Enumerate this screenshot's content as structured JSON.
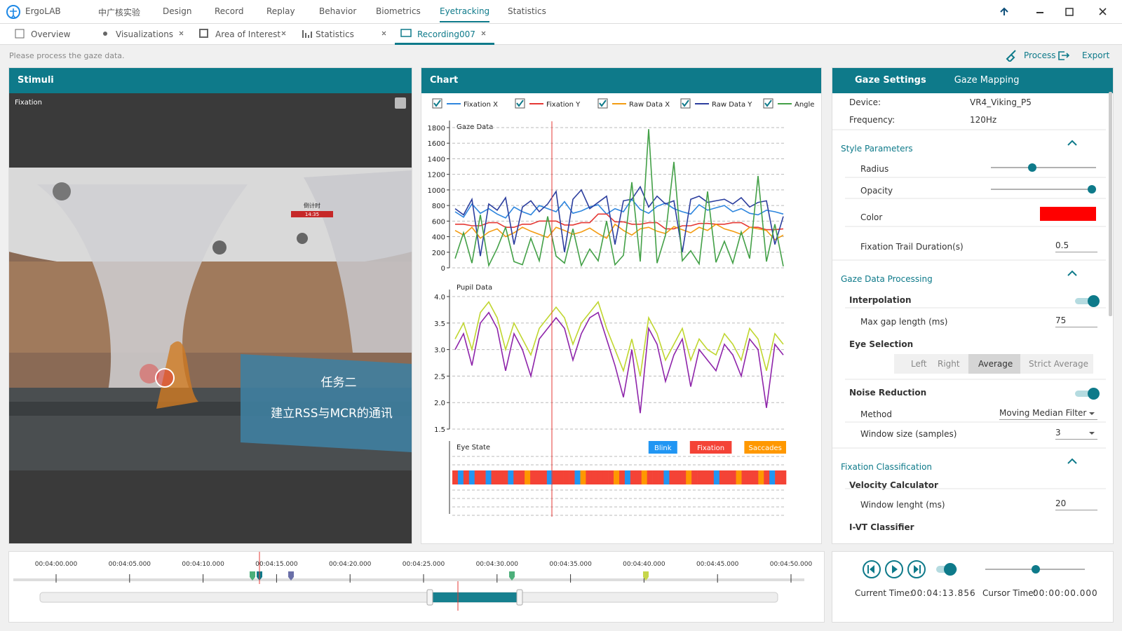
{
  "app": {
    "name": "ErgoLAB",
    "nav": [
      "中广核实验",
      "Design",
      "Record",
      "Replay",
      "Behavior",
      "Biometrics",
      "Eyetracking",
      "Statistics"
    ]
  },
  "tabs": [
    "Overview",
    "Visualizations",
    "Area of Interest",
    "Statistics",
    "Recording007"
  ],
  "hint": "Please process the gaze data.",
  "actions": [
    "Process",
    "Export"
  ],
  "stimuli": {
    "title": "Stimuli",
    "label": "Fixation",
    "scene": {
      "task": "任务二",
      "instruction": "建立RSS与MCR的通讯",
      "sign": "倒计时",
      "clock": "14:35"
    }
  },
  "chart_panel": {
    "title": "Chart"
  },
  "chart_data": [
    {
      "type": "line",
      "title": "Gaze Data",
      "ylim": [
        0,
        1800
      ],
      "yticks": [
        0,
        200,
        400,
        600,
        800,
        1000,
        1200,
        1400,
        1600,
        1800
      ],
      "grid": true,
      "series": [
        {
          "name": "Fixation X",
          "color": "#2e86de",
          "values": [
            720,
            650,
            820,
            700,
            760,
            690,
            640,
            780,
            720,
            680,
            800,
            760,
            720,
            850,
            700,
            730,
            780,
            810,
            690,
            760,
            720,
            880,
            750,
            700,
            790,
            830,
            760,
            720,
            690,
            810,
            740,
            770,
            800,
            720,
            760,
            700,
            680,
            740,
            720,
            690
          ]
        },
        {
          "name": "Fixation Y",
          "color": "#e53935",
          "values": [
            560,
            560,
            540,
            540,
            580,
            580,
            520,
            520,
            560,
            560,
            600,
            600,
            600,
            550,
            550,
            580,
            580,
            690,
            690,
            590,
            590,
            560,
            560,
            580,
            580,
            500,
            500,
            540,
            540,
            570,
            570,
            560,
            560,
            580,
            580,
            520,
            520,
            490,
            490,
            500
          ]
        },
        {
          "name": "Raw Data X",
          "color": "#f39c12",
          "values": [
            480,
            420,
            520,
            380,
            460,
            500,
            400,
            450,
            520,
            470,
            430,
            390,
            520,
            480,
            430,
            460,
            510,
            440,
            380,
            560,
            480,
            420,
            500,
            520,
            470,
            440,
            530,
            490,
            450,
            520,
            480,
            560,
            500,
            470,
            430,
            520,
            500,
            480,
            360,
            420
          ]
        },
        {
          "name": "Raw Data Y",
          "color": "#2c3e9e",
          "values": [
            760,
            680,
            880,
            150,
            820,
            740,
            900,
            300,
            780,
            860,
            720,
            820,
            980,
            200,
            880,
            1000,
            760,
            840,
            920,
            300,
            860,
            880,
            1040,
            780,
            920,
            820,
            860,
            200,
            880,
            920,
            840,
            860,
            880,
            820,
            900,
            780,
            840,
            860,
            300,
            660
          ]
        },
        {
          "name": "Angle",
          "color": "#43a047",
          "values": [
            120,
            450,
            60,
            680,
            30,
            250,
            520,
            80,
            40,
            380,
            90,
            660,
            150,
            60,
            500,
            30,
            240,
            90,
            600,
            40,
            160,
            1100,
            80,
            1780,
            60,
            420,
            1360,
            90,
            220,
            50,
            980,
            70,
            340,
            60,
            460,
            120,
            1180,
            80,
            560,
            20
          ]
        }
      ]
    },
    {
      "type": "line",
      "title": "Pupil Data",
      "ylim": [
        1.5,
        4.0
      ],
      "yticks": [
        1.5,
        {
          "value": 2,
          "label": "2.0"
        },
        2.5,
        {
          "value": 3,
          "label": "3.0"
        },
        3.5,
        {
          "value": 4,
          "label": "4.0"
        }
      ],
      "grid": true,
      "series": [
        {
          "color": "#c0d630",
          "values": [
            3.2,
            3.5,
            3.0,
            3.7,
            3.9,
            3.6,
            3.0,
            3.5,
            3.2,
            2.9,
            3.4,
            3.6,
            3.8,
            3.6,
            3.1,
            3.5,
            3.7,
            3.9,
            3.4,
            3.0,
            2.6,
            3.2,
            2.5,
            3.6,
            3.3,
            2.8,
            3.1,
            3.4,
            2.8,
            3.2,
            3.0,
            2.9,
            3.3,
            3.1,
            2.8,
            3.4,
            3.2,
            2.6,
            3.3,
            3.1
          ]
        },
        {
          "color": "#8e24aa",
          "values": [
            3.0,
            3.3,
            2.7,
            3.5,
            3.7,
            3.4,
            2.6,
            3.3,
            3.0,
            2.5,
            3.2,
            3.4,
            3.6,
            3.4,
            2.8,
            3.3,
            3.6,
            3.7,
            3.2,
            2.7,
            2.1,
            3.0,
            1.8,
            3.4,
            3.1,
            2.4,
            2.9,
            3.2,
            2.3,
            3.0,
            2.8,
            2.6,
            3.1,
            2.9,
            2.5,
            3.2,
            3.0,
            1.9,
            3.1,
            2.9
          ]
        }
      ]
    },
    {
      "type": "state",
      "title": "Eye State",
      "legend": [
        {
          "name": "Blink",
          "color": "#2196f3"
        },
        {
          "name": "Fixation",
          "color": "#f44336"
        },
        {
          "name": "Saccades",
          "color": "#ff9800"
        }
      ],
      "states": [
        1,
        0,
        1,
        0,
        1,
        1,
        0,
        1,
        1,
        1,
        0,
        1,
        1,
        2,
        1,
        1,
        1,
        0,
        1,
        1,
        1,
        1,
        0,
        2,
        1,
        1,
        1,
        1,
        1,
        2,
        1,
        0,
        1,
        1,
        2,
        1,
        1,
        1,
        0,
        1,
        1,
        1,
        2,
        1,
        1,
        1,
        1,
        0,
        1,
        1,
        1,
        2,
        1,
        1,
        1,
        2,
        1,
        0,
        1,
        1
      ]
    }
  ],
  "settings": {
    "tabs": [
      "Gaze Settings",
      "Gaze Mapping"
    ],
    "device_label": "Device:",
    "device": "VR4_Viking_P5",
    "frequency_label": "Frequency:",
    "frequency": "120Hz",
    "style": {
      "title": "Style Parameters",
      "radius": "Radius",
      "opacity": "Opacity",
      "color": "Color",
      "trail_label": "Fixation Trail Duration(s)",
      "trail": 0.5
    },
    "processing": {
      "title": "Gaze Data Processing",
      "interpolation": "Interpolation",
      "gap_label": "Max gap length (ms)",
      "gap": 75,
      "eye_selection": "Eye Selection",
      "eyes": [
        "Left",
        "Right",
        "Average",
        "Strict Average"
      ],
      "noise": "Noise Reduction",
      "method_label": "Method",
      "method": "Moving Median Filter",
      "window_label": "Window size (samples)",
      "window": 3
    },
    "classification": {
      "title": "Fixation Classification",
      "velocity": "Velocity Calculator",
      "window_label": "Window lenght (ms)",
      "window": 20,
      "classifier": "I-VT Classifier"
    }
  },
  "timeline": {
    "ticks": [
      "00:04:00.000",
      "00:04:05.000",
      "00:04:10.000",
      "00:04:15.000",
      "00:04:20.000",
      "00:04:25.000",
      "00:04:30.000",
      "00:04:35.000",
      "00:04:40.000",
      "00:04:45.000",
      "00:04:50.000"
    ],
    "current_label": "Current Time:",
    "current": "00:04:13.856",
    "cursor_label": "Cursor Time:",
    "cursor": "00:00:00.000"
  }
}
